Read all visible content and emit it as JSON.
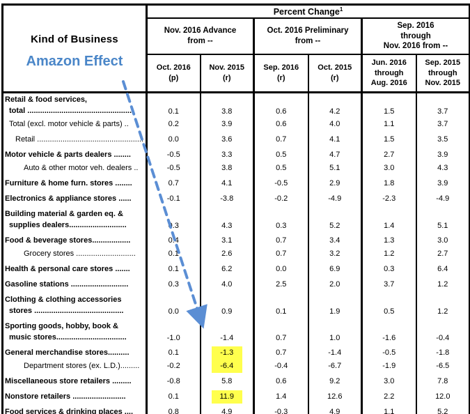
{
  "title": "Percent Change",
  "footnote_mark": "1",
  "stub": {
    "header": "Kind of Business",
    "annotation": "Amazon Effect"
  },
  "column_groups": [
    {
      "lines": [
        "Nov. 2016 Advance",
        "from --"
      ]
    },
    {
      "lines": [
        "Oct. 2016 Preliminary",
        "from --"
      ]
    },
    {
      "lines": [
        "Sep. 2016",
        "through",
        "Nov. 2016 from --"
      ]
    }
  ],
  "columns": [
    {
      "lines": [
        "Oct. 2016",
        "(p)"
      ]
    },
    {
      "lines": [
        "Nov. 2015",
        "(r)"
      ]
    },
    {
      "lines": [
        "Sep. 2016",
        "(r)"
      ]
    },
    {
      "lines": [
        "Oct. 2015",
        "(r)"
      ]
    },
    {
      "lines": [
        "Jun. 2016",
        "through",
        "Aug. 2016"
      ]
    },
    {
      "lines": [
        "Sep. 2015",
        "through",
        "Nov. 2015"
      ]
    }
  ],
  "rows": [
    {
      "name": "retail-food-services-total",
      "bold": true,
      "lines": [
        {
          "text": "Retail & food services,",
          "indent": 1
        },
        {
          "text": "total .................................................",
          "indent": 7
        }
      ],
      "values": [
        "0.1",
        "3.8",
        "0.6",
        "4.2",
        "1.5",
        "3.7"
      ]
    },
    {
      "name": "total-excl-motor-vehicle-parts",
      "bold": false,
      "lines": [
        {
          "text": "Total (excl. motor vehicle & parts) ..",
          "indent": 7
        }
      ],
      "values": [
        "0.2",
        "3.9",
        "0.6",
        "4.0",
        "1.1",
        "3.7"
      ]
    },
    {
      "name": "retail",
      "bold": false,
      "gap": true,
      "lines": [
        {
          "text": "Retail ..................................................",
          "indent": 16
        }
      ],
      "values": [
        "0.0",
        "3.6",
        "0.7",
        "4.1",
        "1.5",
        "3.5"
      ]
    },
    {
      "name": "motor-vehicle-parts-dealers",
      "bold": true,
      "gap": true,
      "lines": [
        {
          "text": "Motor vehicle & parts dealers ........",
          "indent": 1
        }
      ],
      "values": [
        "-0.5",
        "3.3",
        "0.5",
        "4.7",
        "2.7",
        "3.9"
      ]
    },
    {
      "name": "auto-other-motor-veh-dealers",
      "bold": false,
      "lines": [
        {
          "text": "Auto & other motor veh. dealers ..",
          "indent": 28
        }
      ],
      "values": [
        "-0.5",
        "3.8",
        "0.5",
        "5.1",
        "3.0",
        "4.3"
      ]
    },
    {
      "name": "furniture-home-furn-stores",
      "bold": true,
      "gap": true,
      "lines": [
        {
          "text": "Furniture & home furn. stores ........",
          "indent": 1
        }
      ],
      "values": [
        "0.7",
        "4.1",
        "-0.5",
        "2.9",
        "1.8",
        "3.9"
      ]
    },
    {
      "name": "electronics-appliance-stores",
      "bold": true,
      "gap": true,
      "lines": [
        {
          "text": "Electronics & appliance stores ......",
          "indent": 1
        }
      ],
      "values": [
        "-0.1",
        "-3.8",
        "-0.2",
        "-4.9",
        "-2.3",
        "-4.9"
      ]
    },
    {
      "name": "building-material-garden-supplies-dealers",
      "bold": true,
      "gap": true,
      "lines": [
        {
          "text": "Building material & garden eq. &",
          "indent": 1
        },
        {
          "text": "supplies dealers...........................",
          "indent": 7
        }
      ],
      "values": [
        "0.3",
        "4.3",
        "0.3",
        "5.2",
        "1.4",
        "5.1"
      ]
    },
    {
      "name": "food-beverage-stores",
      "bold": true,
      "gap": true,
      "lines": [
        {
          "text": "Food & beverage stores..................",
          "indent": 1
        }
      ],
      "values": [
        "0.4",
        "3.1",
        "0.7",
        "3.4",
        "1.3",
        "3.0"
      ]
    },
    {
      "name": "grocery-stores",
      "bold": false,
      "lines": [
        {
          "text": "Grocery stores ............................",
          "indent": 28
        }
      ],
      "values": [
        "0.1",
        "2.6",
        "0.7",
        "3.2",
        "1.2",
        "2.7"
      ]
    },
    {
      "name": "health-personal-care-stores",
      "bold": true,
      "gap": true,
      "lines": [
        {
          "text": "Health & personal care stores .......",
          "indent": 1
        }
      ],
      "values": [
        "0.1",
        "6.2",
        "0.0",
        "6.9",
        "0.3",
        "6.4"
      ]
    },
    {
      "name": "gasoline-stations",
      "bold": true,
      "gap": true,
      "lines": [
        {
          "text": "Gasoline stations ...........................",
          "indent": 1
        }
      ],
      "values": [
        "0.3",
        "4.0",
        "2.5",
        "2.0",
        "3.7",
        "1.2"
      ]
    },
    {
      "name": "clothing-accessories-stores",
      "bold": true,
      "gap": true,
      "lines": [
        {
          "text": "Clothing & clothing accessories",
          "indent": 1
        },
        {
          "text": "stores ..........................................",
          "indent": 7
        }
      ],
      "values": [
        "0.0",
        "0.9",
        "0.1",
        "1.9",
        "0.5",
        "1.2"
      ]
    },
    {
      "name": "sporting-goods-hobby-book-music-stores",
      "bold": true,
      "gap": true,
      "lines": [
        {
          "text": "Sporting goods, hobby, book &",
          "indent": 1
        },
        {
          "text": "music stores.................................",
          "indent": 7
        }
      ],
      "values": [
        "-1.0",
        "-1.4",
        "0.7",
        "1.0",
        "-1.6",
        "-0.4"
      ]
    },
    {
      "name": "general-merchandise-stores",
      "bold": true,
      "gap": true,
      "lines": [
        {
          "text": "General merchandise stores..........",
          "indent": 1
        }
      ],
      "values": [
        "0.1",
        "-1.3",
        "0.7",
        "-1.4",
        "-0.5",
        "-1.8"
      ],
      "highlight": [
        1
      ]
    },
    {
      "name": "department-stores",
      "bold": false,
      "lines": [
        {
          "text": "Department stores (ex. L.D.).........",
          "indent": 28
        }
      ],
      "values": [
        "-0.2",
        "-6.4",
        "-0.4",
        "-6.7",
        "-1.9",
        "-6.5"
      ],
      "highlight": [
        1
      ]
    },
    {
      "name": "miscellaneous-store-retailers",
      "bold": true,
      "gap": true,
      "lines": [
        {
          "text": "Miscellaneous store retailers .........",
          "indent": 1
        }
      ],
      "values": [
        "-0.8",
        "5.8",
        "0.6",
        "9.2",
        "3.0",
        "7.8"
      ]
    },
    {
      "name": "nonstore-retailers",
      "bold": true,
      "gap": true,
      "lines": [
        {
          "text": "Nonstore retailers .........................",
          "indent": 1
        }
      ],
      "values": [
        "0.1",
        "11.9",
        "1.4",
        "12.6",
        "2.2",
        "12.0"
      ],
      "highlight": [
        1
      ]
    },
    {
      "name": "food-services-drinking-places",
      "bold": true,
      "gap": true,
      "lines": [
        {
          "text": "Food services & drinking places ....",
          "indent": 1
        }
      ],
      "values": [
        "0.8",
        "4.9",
        "-0.3",
        "4.9",
        "1.1",
        "5.2"
      ]
    }
  ],
  "colors": {
    "accent_blue": "#4a86c8",
    "arrow_blue": "#5b8ed4",
    "highlight_yellow": "#ffff4d",
    "border_black": "#000000"
  }
}
